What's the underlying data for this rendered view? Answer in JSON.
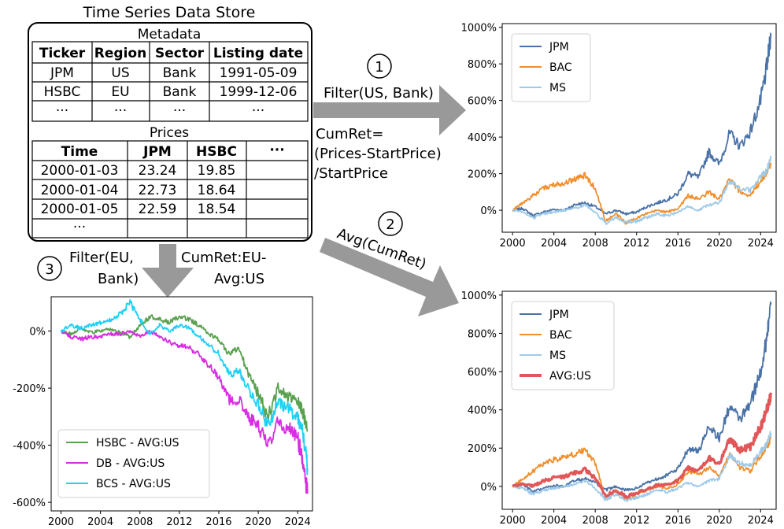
{
  "store": {
    "title": "Time Series Data Store",
    "metadata_title": "Metadata",
    "metadata_headers": [
      "Ticker",
      "Region",
      "Sector",
      "Listing date"
    ],
    "metadata_rows": [
      [
        "JPM",
        "US",
        "Bank",
        "1991-05-09"
      ],
      [
        "HSBC",
        "EU",
        "Bank",
        "1999-12-06"
      ],
      [
        "···",
        "···",
        "···",
        "···"
      ]
    ],
    "prices_title": "Prices",
    "prices_headers": [
      "Time",
      "JPM",
      "HSBC",
      "···"
    ],
    "prices_rows": [
      [
        "2000-01-03",
        "23.24",
        "19.85",
        ""
      ],
      [
        "2000-01-04",
        "22.73",
        "18.64",
        ""
      ],
      [
        "2000-01-05",
        "22.59",
        "18.54",
        ""
      ],
      [
        "···",
        "",
        "",
        ""
      ]
    ]
  },
  "steps": {
    "step1": {
      "num": "1",
      "label": "Filter(US, Bank)",
      "formula": [
        "CumRet=",
        "(Prices-StartPrice)",
        "/StartPrice"
      ]
    },
    "step2": {
      "num": "2",
      "label": "Avg(CumRet)"
    },
    "step3": {
      "num": "3",
      "label": [
        "Filter(EU,",
        "Bank)"
      ],
      "label2": [
        "CumRet:EU-",
        "Avg:US"
      ]
    }
  },
  "colors": {
    "jpm": "#4a72a6",
    "bac": "#f28e2b",
    "ms": "#9ecae9",
    "avg": "#e15759",
    "hsbc": "#59a14f",
    "db": "#d62ee0",
    "bcs": "#1fd0f5",
    "arrow": "#999999"
  },
  "chart_data": [
    {
      "id": "chart-us",
      "type": "line",
      "xlim": [
        1999,
        2025.5
      ],
      "ylim": [
        -120,
        1020
      ],
      "xticks": [
        "2000",
        "2004",
        "2008",
        "2012",
        "2016",
        "2020",
        "2024"
      ],
      "yticks": [
        "0%",
        "200%",
        "400%",
        "600%",
        "800%",
        "1000%"
      ],
      "legend": "top-left",
      "series": [
        {
          "name": "JPM",
          "x": [
            2000,
            2001,
            2002,
            2003,
            2004,
            2005,
            2006,
            2007,
            2008,
            2009,
            2010,
            2011,
            2012,
            2013,
            2014,
            2015,
            2016,
            2017,
            2018,
            2019,
            2020,
            2021,
            2022,
            2023,
            2024,
            2024.5,
            2025
          ],
          "y": [
            0,
            10,
            -30,
            -10,
            5,
            0,
            30,
            40,
            20,
            -20,
            0,
            -20,
            -10,
            20,
            40,
            60,
            90,
            200,
            180,
            320,
            250,
            420,
            350,
            430,
            600,
            750,
            950
          ]
        },
        {
          "name": "BAC",
          "x": [
            2000,
            2001,
            2002,
            2003,
            2004,
            2005,
            2006,
            2007,
            2008,
            2009,
            2010,
            2011,
            2012,
            2013,
            2014,
            2015,
            2016,
            2017,
            2018,
            2019,
            2020,
            2021,
            2022,
            2023,
            2024,
            2024.5,
            2025
          ],
          "y": [
            0,
            40,
            80,
            120,
            140,
            150,
            170,
            190,
            120,
            -60,
            -20,
            -70,
            -40,
            -20,
            0,
            -10,
            10,
            80,
            60,
            100,
            60,
            170,
            100,
            80,
            160,
            200,
            250
          ]
        },
        {
          "name": "MS",
          "x": [
            2000,
            2001,
            2002,
            2003,
            2004,
            2005,
            2006,
            2007,
            2008,
            2009,
            2010,
            2011,
            2012,
            2013,
            2014,
            2015,
            2016,
            2017,
            2018,
            2019,
            2020,
            2021,
            2022,
            2023,
            2024,
            2024.5,
            2025
          ],
          "y": [
            0,
            -10,
            -40,
            -20,
            -10,
            0,
            10,
            30,
            -10,
            -70,
            -40,
            -70,
            -60,
            -40,
            -20,
            -30,
            -10,
            20,
            0,
            30,
            40,
            160,
            120,
            110,
            180,
            210,
            280
          ]
        }
      ]
    },
    {
      "id": "chart-us-avg",
      "type": "line",
      "xlim": [
        1999,
        2025.5
      ],
      "ylim": [
        -120,
        1020
      ],
      "xticks": [
        "2000",
        "2004",
        "2008",
        "2012",
        "2016",
        "2020",
        "2024"
      ],
      "yticks": [
        "0%",
        "200%",
        "400%",
        "600%",
        "800%",
        "1000%"
      ],
      "legend": "top-left",
      "series": [
        {
          "name": "JPM",
          "x": [
            2000,
            2001,
            2002,
            2003,
            2004,
            2005,
            2006,
            2007,
            2008,
            2009,
            2010,
            2011,
            2012,
            2013,
            2014,
            2015,
            2016,
            2017,
            2018,
            2019,
            2020,
            2021,
            2022,
            2023,
            2024,
            2024.5,
            2025
          ],
          "y": [
            0,
            10,
            -30,
            -10,
            5,
            0,
            30,
            40,
            20,
            -20,
            0,
            -20,
            -10,
            20,
            40,
            60,
            90,
            200,
            180,
            320,
            250,
            420,
            350,
            430,
            600,
            750,
            950
          ]
        },
        {
          "name": "BAC",
          "x": [
            2000,
            2001,
            2002,
            2003,
            2004,
            2005,
            2006,
            2007,
            2008,
            2009,
            2010,
            2011,
            2012,
            2013,
            2014,
            2015,
            2016,
            2017,
            2018,
            2019,
            2020,
            2021,
            2022,
            2023,
            2024,
            2024.5,
            2025
          ],
          "y": [
            0,
            40,
            80,
            120,
            140,
            150,
            170,
            190,
            120,
            -60,
            -20,
            -70,
            -40,
            -20,
            0,
            -10,
            10,
            80,
            60,
            100,
            60,
            170,
            100,
            80,
            160,
            200,
            250
          ]
        },
        {
          "name": "MS",
          "x": [
            2000,
            2001,
            2002,
            2003,
            2004,
            2005,
            2006,
            2007,
            2008,
            2009,
            2010,
            2011,
            2012,
            2013,
            2014,
            2015,
            2016,
            2017,
            2018,
            2019,
            2020,
            2021,
            2022,
            2023,
            2024,
            2024.5,
            2025
          ],
          "y": [
            0,
            -10,
            -40,
            -20,
            -10,
            0,
            10,
            30,
            -10,
            -70,
            -40,
            -70,
            -60,
            -40,
            -20,
            -30,
            -10,
            20,
            0,
            30,
            40,
            160,
            120,
            110,
            180,
            210,
            280
          ]
        },
        {
          "name": "AVG:US",
          "x": [
            2000,
            2001,
            2002,
            2003,
            2004,
            2005,
            2006,
            2007,
            2008,
            2009,
            2010,
            2011,
            2012,
            2013,
            2014,
            2015,
            2016,
            2017,
            2018,
            2019,
            2020,
            2021,
            2022,
            2023,
            2024,
            2024.5,
            2025
          ],
          "y": [
            0,
            13,
            3,
            30,
            45,
            50,
            70,
            87,
            43,
            -50,
            -20,
            -53,
            -37,
            -13,
            7,
            7,
            30,
            100,
            80,
            150,
            117,
            250,
            190,
            207,
            313,
            387,
            490
          ]
        }
      ]
    },
    {
      "id": "chart-eu",
      "type": "line",
      "xlim": [
        1999,
        2025.5
      ],
      "ylim": [
        -630,
        120
      ],
      "xticks": [
        "2000",
        "2004",
        "2008",
        "2012",
        "2016",
        "2020",
        "2024"
      ],
      "yticks": [
        "0%",
        "-200%",
        "-400%",
        "-600%"
      ],
      "legend": "bottom-left",
      "series": [
        {
          "name": "HSBC - AVG:US",
          "x": [
            2000,
            2001,
            2002,
            2003,
            2004,
            2005,
            2006,
            2007,
            2008,
            2009,
            2010,
            2011,
            2012,
            2013,
            2014,
            2015,
            2016,
            2017,
            2018,
            2019,
            2020,
            2021,
            2022,
            2023,
            2024,
            2024.5,
            2025
          ],
          "y": [
            0,
            -10,
            10,
            -5,
            0,
            5,
            -5,
            -20,
            20,
            50,
            40,
            30,
            50,
            40,
            20,
            -10,
            -30,
            -80,
            -60,
            -150,
            -220,
            -300,
            -200,
            -230,
            -250,
            -280,
            -350
          ]
        },
        {
          "name": "DB - AVG:US",
          "x": [
            2000,
            2001,
            2002,
            2003,
            2004,
            2005,
            2006,
            2007,
            2008,
            2009,
            2010,
            2011,
            2012,
            2013,
            2014,
            2015,
            2016,
            2017,
            2018,
            2019,
            2020,
            2021,
            2022,
            2023,
            2024,
            2024.5,
            2025
          ],
          "y": [
            0,
            -20,
            -30,
            -20,
            -20,
            -10,
            -10,
            0,
            -20,
            0,
            -20,
            -40,
            -50,
            -60,
            -80,
            -120,
            -160,
            -240,
            -240,
            -300,
            -330,
            -400,
            -320,
            -340,
            -380,
            -450,
            -570
          ]
        },
        {
          "name": "BCS - AVG:US",
          "x": [
            2000,
            2001,
            2002,
            2003,
            2004,
            2005,
            2006,
            2007,
            2008,
            2009,
            2010,
            2011,
            2012,
            2013,
            2014,
            2015,
            2016,
            2017,
            2018,
            2019,
            2020,
            2021,
            2022,
            2023,
            2024,
            2024.5,
            2025
          ],
          "y": [
            0,
            20,
            10,
            20,
            30,
            40,
            60,
            100,
            40,
            -10,
            20,
            0,
            20,
            10,
            -20,
            -50,
            -80,
            -150,
            -140,
            -200,
            -260,
            -330,
            -250,
            -270,
            -300,
            -350,
            -480
          ]
        }
      ]
    }
  ]
}
